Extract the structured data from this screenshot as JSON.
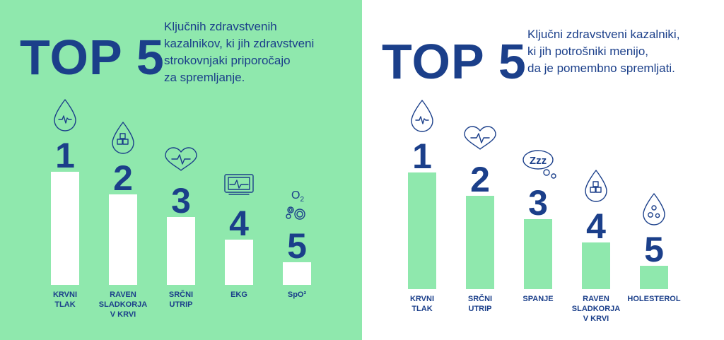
{
  "chart_data": [
    {
      "type": "bar",
      "title": "TOP 5",
      "subtitle": "Ključnih zdravstvenih\nkazalnikov, ki jih zdravstveni\nstrokovnjaki priporočajo\nza spremljanje.",
      "categories": [
        "KRVNI TLAK",
        "RAVEN SLADKORJA V KRVI",
        "SRČNI UTRIP",
        "EKG",
        "SpO²"
      ],
      "ranks": [
        "1",
        "2",
        "3",
        "4",
        "5"
      ],
      "values": [
        5,
        4,
        3,
        2,
        1
      ],
      "icons": [
        "drop-heartbeat-icon",
        "drop-sugar-cubes-icon",
        "heart-heartbeat-icon",
        "ekg-monitor-icon",
        "oxygen-bubbles-icon"
      ],
      "bar_color": "#ffffff",
      "background": "#8fe8ad"
    },
    {
      "type": "bar",
      "title": "TOP 5",
      "subtitle": "Ključni zdravstveni kazalniki,\nki jih potrošniki menijo,\nda je pomembno spremljati.",
      "categories": [
        "KRVNI TLAK",
        "SRČNI UTRIP",
        "SPANJE",
        "RAVEN SLADKORJA V KRVI",
        "HOLESTEROL"
      ],
      "ranks": [
        "1",
        "2",
        "3",
        "4",
        "5"
      ],
      "values": [
        5,
        4,
        3,
        2,
        1
      ],
      "icons": [
        "drop-heartbeat-icon",
        "heart-heartbeat-icon",
        "sleep-zzz-icon",
        "drop-sugar-cubes-icon",
        "drop-bubbles-icon"
      ],
      "bar_color": "#8fe8ad",
      "background": "#ffffff"
    }
  ],
  "colors": {
    "text": "#1b3f8a",
    "green": "#8fe8ad",
    "white": "#ffffff"
  },
  "label_lines": [
    [
      [
        "KRVNI",
        "TLAK"
      ],
      [
        "RAVEN",
        "SLADKORJA",
        "V KRVI"
      ],
      [
        "SRČNI",
        "UTRIP"
      ],
      [
        "EKG"
      ],
      [
        "SpO²"
      ]
    ],
    [
      [
        "KRVNI",
        "TLAK"
      ],
      [
        "SRČNI",
        "UTRIP"
      ],
      [
        "SPANJE"
      ],
      [
        "RAVEN",
        "SLADKORJA",
        "V KRVI"
      ],
      [
        "HOLESTEROL"
      ]
    ]
  ],
  "zzz_text": "Zzz",
  "o2_text": "O",
  "o2_sub": "2"
}
